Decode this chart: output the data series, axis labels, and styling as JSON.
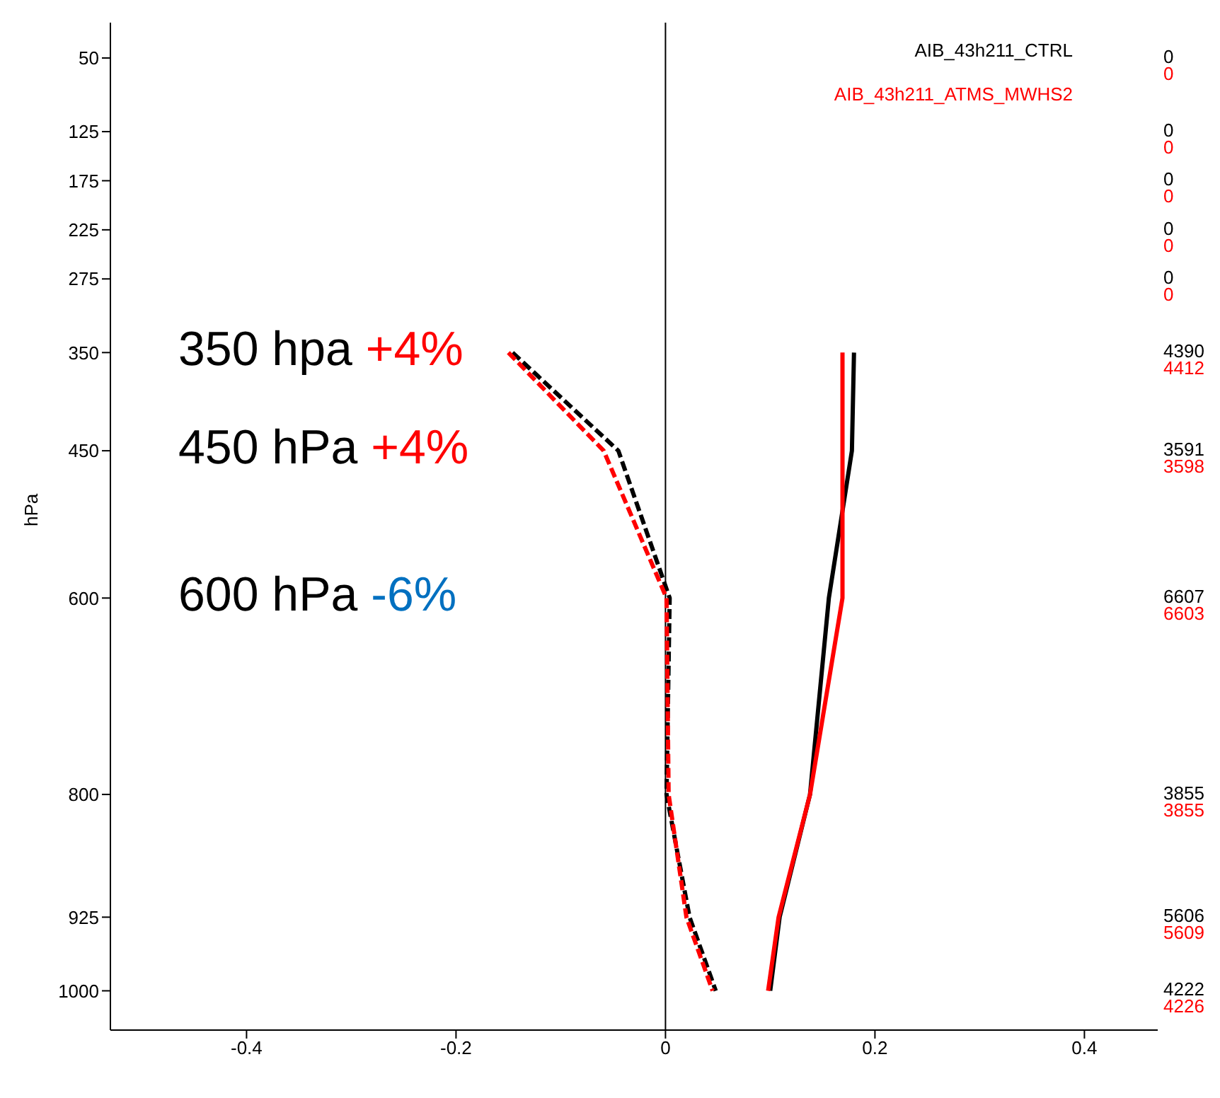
{
  "chart_data": {
    "type": "line",
    "ylabel": "hPa",
    "xlim": [
      -0.53,
      0.47
    ],
    "xticks": [
      -0.4,
      -0.2,
      0.0,
      0.2,
      0.4
    ],
    "ylim": [
      1040,
      14
    ],
    "yticks": [
      50,
      125,
      175,
      225,
      275,
      350,
      450,
      600,
      800,
      925,
      1000
    ],
    "marker": "none",
    "legend": "top right",
    "ref_lines": [
      {
        "axis": "x",
        "value": 0,
        "color": "#000000"
      }
    ],
    "annotations": [
      "350 hpa +4%",
      "450 hPa +4%",
      "600 hPa -6%",
      "0",
      "0",
      "0",
      "0",
      "0",
      "0",
      "0",
      "0",
      "0",
      "0",
      "4390",
      "4412",
      "3591",
      "3598",
      "6607",
      "6603",
      "3855",
      "3855",
      "5606",
      "5609",
      "4222",
      "4226"
    ],
    "series": [
      {
        "name": "AIB_43h211_CTRL",
        "color": "#000000",
        "line_style": "solid",
        "values": [
          350,
          450,
          600,
          800,
          925,
          1000
        ],
        "x": [
          0.18,
          0.178,
          0.156,
          0.138,
          0.109,
          0.1
        ]
      },
      {
        "name": "AIB_43h211_ATMS_MWHS2",
        "color": "#ff0000",
        "line_style": "solid",
        "values": [
          350,
          450,
          600,
          800,
          925,
          1000
        ],
        "x": [
          0.169,
          0.169,
          0.169,
          0.138,
          0.108,
          0.098
        ]
      },
      {
        "color": "#000000",
        "line_style": "dashed",
        "values": [
          350,
          450,
          600,
          800,
          925,
          1000
        ],
        "x": [
          -0.146,
          -0.045,
          0.004,
          0.001,
          0.023,
          0.048
        ]
      },
      {
        "color": "#ff0000",
        "line_style": "dashed",
        "values": [
          350,
          450,
          600,
          800,
          925,
          1000
        ],
        "x": [
          -0.15,
          -0.059,
          0.001,
          0.003,
          0.02,
          0.045
        ]
      }
    ]
  }
}
